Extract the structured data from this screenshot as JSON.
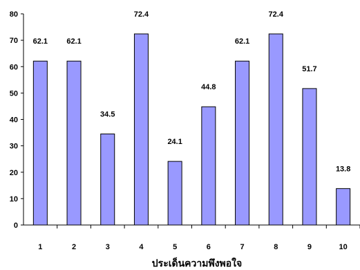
{
  "chart_data": {
    "type": "bar",
    "categories": [
      "1",
      "2",
      "3",
      "4",
      "5",
      "6",
      "7",
      "8",
      "9",
      "10"
    ],
    "values": [
      62.1,
      62.1,
      34.5,
      72.4,
      24.1,
      44.8,
      62.1,
      72.4,
      51.7,
      13.8
    ],
    "data_labels": [
      "62.1",
      "62.1",
      "34.5",
      "72.4",
      "24.1",
      "44.8",
      "62.1",
      "72.4",
      "51.7",
      "13.8"
    ],
    "xlabel": "ประเด็นความพึงพอใจ",
    "ylabel": "",
    "ylim": [
      0,
      80
    ],
    "yticks": [
      "0",
      "10",
      "20",
      "30",
      "40",
      "50",
      "60",
      "70",
      "80"
    ],
    "grid": false,
    "legend": "none",
    "bar_color": "#9999ff"
  }
}
